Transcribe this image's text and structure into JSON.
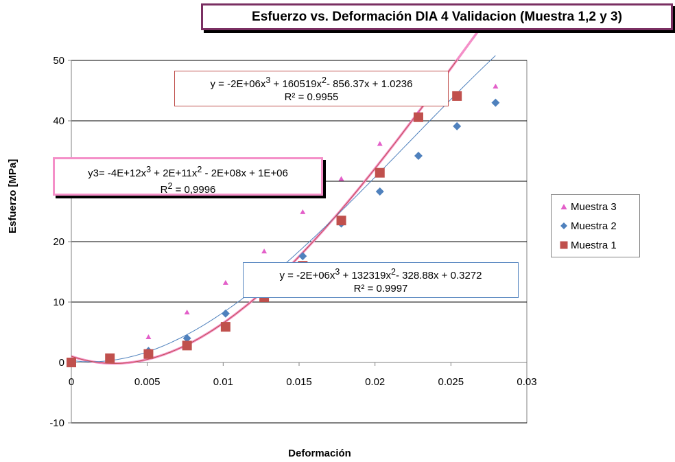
{
  "chart_data": {
    "type": "scatter",
    "title": "Esfuerzo vs. Deformación DIA 4 Validacion (Muestra 1,2 y 3)",
    "xlabel": "Deformación",
    "ylabel": "Esfuerzo [MPa]",
    "xlim": [
      0,
      0.03
    ],
    "ylim": [
      -10,
      50
    ],
    "xticks": [
      0,
      0.005,
      0.01,
      0.015,
      0.02,
      0.025,
      0.03
    ],
    "xtick_labels": [
      "0",
      "0.005",
      "0.01",
      "0.015",
      "0.02",
      "0.025",
      "0.03"
    ],
    "yticks": [
      -10,
      0,
      10,
      20,
      30,
      40,
      50
    ],
    "ytick_labels": [
      "-10",
      "0",
      "10",
      "20",
      "30",
      "40",
      "50"
    ],
    "grid": "horizontal",
    "legend_position": "right",
    "series": [
      {
        "name": "Muestra 3",
        "marker": "triangle",
        "color": "#e35fc9",
        "x": [
          0,
          0.00254,
          0.00508,
          0.00762,
          0.01016,
          0.0127,
          0.01524,
          0.01778,
          0.02032,
          0.02286,
          0.0254,
          0.02794
        ],
        "y": [
          0.1,
          1.0,
          4.2,
          8.3,
          13.2,
          18.4,
          24.9,
          30.4,
          36.2,
          41.3,
          44.3,
          45.7
        ]
      },
      {
        "name": "Muestra 2",
        "marker": "diamond",
        "color": "#4f81bd",
        "x": [
          0,
          0.00254,
          0.00508,
          0.00762,
          0.01016,
          0.0127,
          0.01524,
          0.01778,
          0.02032,
          0.02286,
          0.0254,
          0.02794
        ],
        "y": [
          0,
          0.8,
          1.9,
          4.0,
          8.1,
          12.6,
          17.6,
          23.0,
          28.3,
          34.2,
          39.1,
          43.0
        ]
      },
      {
        "name": "Muestra 1",
        "marker": "square",
        "color": "#c0504d",
        "x": [
          0,
          0.00254,
          0.00508,
          0.00762,
          0.01016,
          0.0127,
          0.01524,
          0.01778,
          0.02032,
          0.02286,
          0.0254
        ],
        "y": [
          0,
          0.7,
          1.4,
          2.8,
          5.9,
          10.8,
          16.0,
          23.5,
          31.4,
          40.6,
          44.1
        ]
      }
    ],
    "trendlines": [
      {
        "series": "Muestra 3",
        "color": "#f48fc8",
        "coefficients": [
          -2000000,
          160519,
          -856.37,
          1.0236
        ],
        "line_width": "thick"
      },
      {
        "series": "Muestra 2",
        "color": "#4f81bd",
        "coefficients": [
          -2000000,
          132319,
          -328.88,
          0.3272
        ],
        "line_width": "thin"
      },
      {
        "series": "Muestra 1",
        "color": "#c0504d",
        "coefficients": [
          -2000000,
          160519,
          -856.37,
          1.0236
        ],
        "line_width": "thin"
      }
    ],
    "annotations": {
      "eq_s3_line1": "y = -2E+06x",
      "eq_s3_line1_exp1": "3",
      "eq_s3_line1_mid": " + 160519x",
      "eq_s3_line1_exp2": "2",
      "eq_s3_line1_end": "- 856.37x + 1.0236",
      "eq_s3_line2": "R² = 0.9955",
      "eq_y3_line1": "y3= -4E+12x",
      "eq_y3_line1_exp1": "3",
      "eq_y3_line1_mid": " + 2E+11x",
      "eq_y3_line1_exp2": "2",
      "eq_y3_line1_end": " - 2E+08x + 1E+06",
      "eq_y3_line2_a": "R",
      "eq_y3_line2_exp": "2",
      "eq_y3_line2_b": " = 0,9996",
      "eq_s2_line1": "y = -2E+06x",
      "eq_s2_line1_exp1": "3",
      "eq_s2_line1_mid": " + 132319x",
      "eq_s2_line1_exp2": "2",
      "eq_s2_line1_end": "- 328.88x + 0.3272",
      "eq_s2_line2": "R² = 0.9997"
    }
  }
}
